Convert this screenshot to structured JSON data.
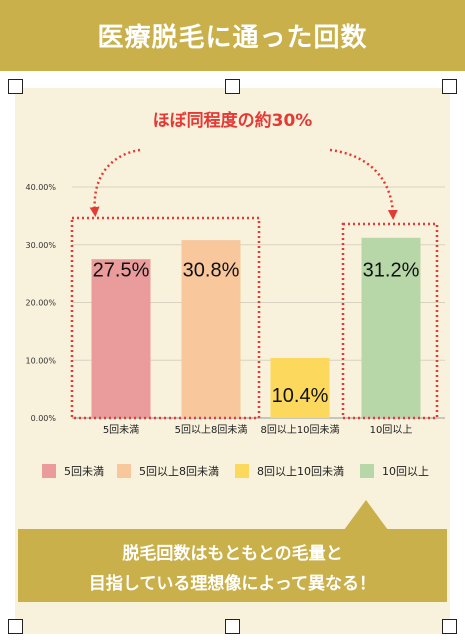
{
  "header": {
    "title": "医療脱毛に通った回数"
  },
  "annotation": {
    "callout": "ほぼ同程度の約30%"
  },
  "colors": {
    "title_bar": "#c9b04a",
    "panel_bg": "#f8f1dc",
    "callout_red": "#e53935",
    "bar_1": "#ea9c9c",
    "bar_2": "#f8c79c",
    "bar_3": "#fcd95c",
    "bar_4": "#b7d7a8"
  },
  "chart_data": {
    "type": "bar",
    "categories": [
      "5回未満",
      "5回以上8回未満",
      "8回以上10回未満",
      "10回以上"
    ],
    "values": [
      27.5,
      30.8,
      10.4,
      31.2
    ],
    "data_labels": [
      "27.5%",
      "30.8%",
      "10.4%",
      "31.2%"
    ],
    "ylim": [
      0,
      40
    ],
    "yticks": [
      "0.00%",
      "10.00%",
      "20.00%",
      "30.00%",
      "40.00%"
    ],
    "ytick_values": [
      0,
      10,
      20,
      30,
      40
    ],
    "grid": true,
    "legend_position": "bottom",
    "legend": [
      "5回未満",
      "5回以上8回未満",
      "8回以上10回未満",
      "10回以上"
    ]
  },
  "message": {
    "line1": "脱毛回数はもともとの毛量と",
    "line2": "目指している理想像によって異なる！"
  }
}
